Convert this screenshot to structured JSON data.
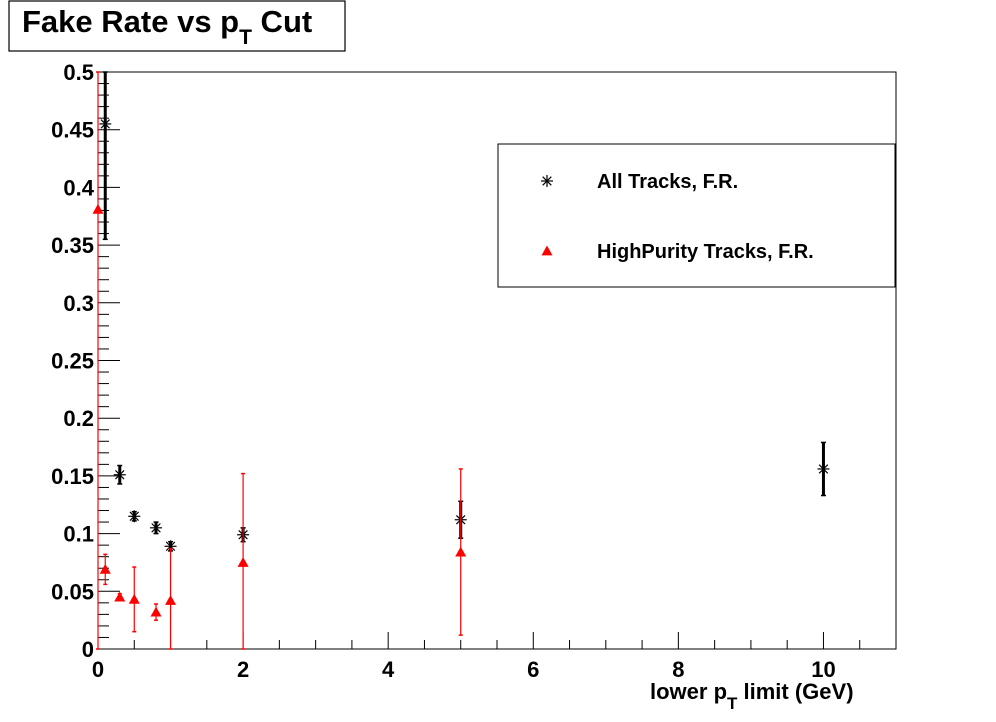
{
  "chart_data": {
    "type": "scatter",
    "title": "Fake Rate vs p",
    "title_sub": "T",
    "title_suffix": " Cut",
    "xlabel_pre": "lower p",
    "xlabel_sub": "T",
    "xlabel_post": " limit (GeV)",
    "ylabel": "",
    "xlim": [
      0,
      11
    ],
    "ylim": [
      0,
      0.5
    ],
    "x_ticks": [
      "0",
      "2",
      "4",
      "6",
      "8",
      "10"
    ],
    "y_ticks": [
      "0",
      "0.05",
      "0.1",
      "0.15",
      "0.2",
      "0.25",
      "0.3",
      "0.35",
      "0.4",
      "0.45",
      "0.5"
    ],
    "grid": false,
    "legend_position": "top-right",
    "series": [
      {
        "name": "All Tracks, F.R.",
        "marker": "star",
        "color": "#000000",
        "points": [
          {
            "x": 0.1,
            "y": 0.455,
            "err": 0.1
          },
          {
            "x": 0.3,
            "y": 0.151,
            "err": 0.008
          },
          {
            "x": 0.5,
            "y": 0.115,
            "err": 0.004
          },
          {
            "x": 0.8,
            "y": 0.105,
            "err": 0.005
          },
          {
            "x": 1.0,
            "y": 0.089,
            "err": 0.004
          },
          {
            "x": 2.0,
            "y": 0.099,
            "err": 0.006
          },
          {
            "x": 5.0,
            "y": 0.112,
            "err": 0.016
          },
          {
            "x": 10.0,
            "y": 0.156,
            "err": 0.023
          }
        ]
      },
      {
        "name": "HighPurity Tracks, F.R.",
        "marker": "triangle",
        "color": "#ff0000",
        "points": [
          {
            "x": 0.0,
            "y": 0.381,
            "err": 0.381
          },
          {
            "x": 0.1,
            "y": 0.069,
            "err": 0.013
          },
          {
            "x": 0.3,
            "y": 0.045,
            "err": 0.003
          },
          {
            "x": 0.5,
            "y": 0.043,
            "err": 0.028
          },
          {
            "x": 0.8,
            "y": 0.032,
            "err": 0.007
          },
          {
            "x": 1.0,
            "y": 0.042,
            "err": 0.045
          },
          {
            "x": 2.0,
            "y": 0.075,
            "err": 0.077
          },
          {
            "x": 5.0,
            "y": 0.084,
            "err": 0.072
          }
        ]
      }
    ]
  }
}
